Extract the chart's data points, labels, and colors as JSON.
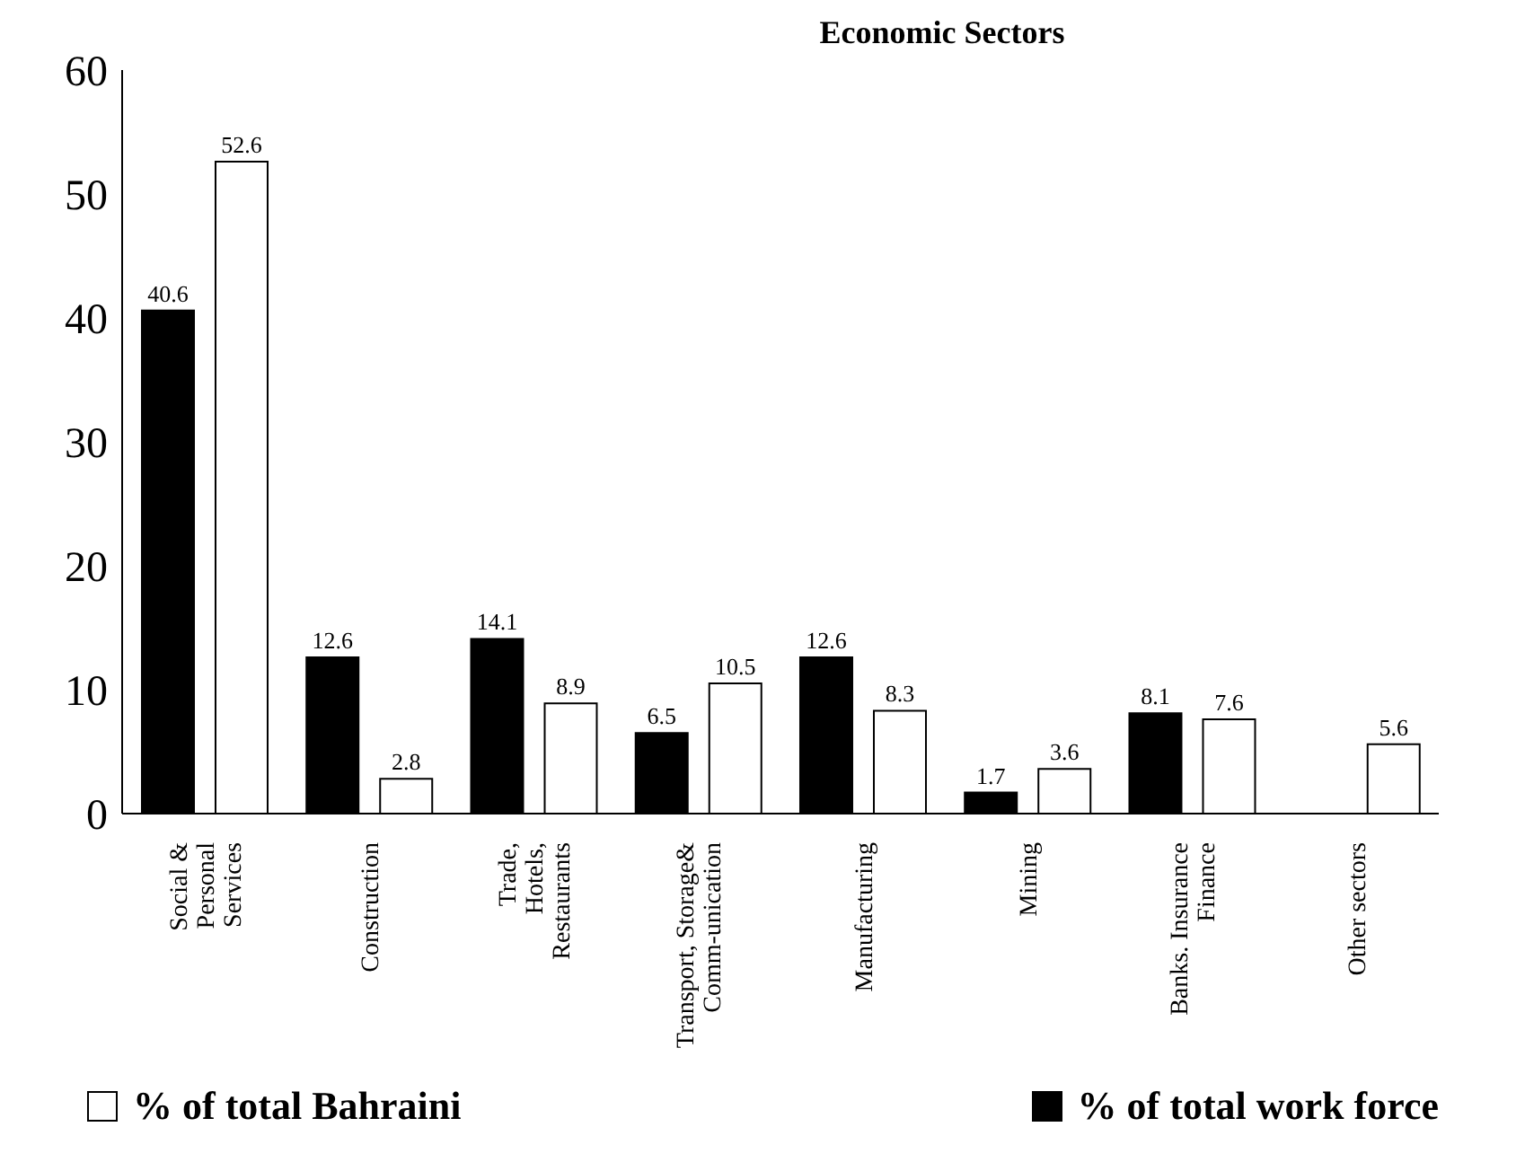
{
  "chart_data": {
    "type": "bar",
    "title": "Economic Sectors",
    "categories": [
      "Social &\nPersonal\nServices",
      "Construction",
      "Trade,\nHotels,\nRestaurants",
      "Transport, Storage&\nComm-unication",
      "Manufacturing",
      "Mining",
      "Banks. Insurance\nFinance",
      "Other sectors"
    ],
    "series": [
      {
        "name": "% of total work force",
        "color": "#000000",
        "values": [
          40.6,
          12.6,
          14.1,
          6.5,
          12.6,
          1.7,
          8.1,
          null
        ]
      },
      {
        "name": "% of total Bahraini",
        "color": "#ffffff",
        "values": [
          52.6,
          2.8,
          8.9,
          10.5,
          8.3,
          3.6,
          7.6,
          5.6
        ]
      }
    ],
    "ylim": [
      0,
      60
    ],
    "yticks": [
      0,
      10,
      20,
      30,
      40,
      50,
      60
    ],
    "grid": false,
    "legend": "bottom",
    "data_labels": true
  }
}
